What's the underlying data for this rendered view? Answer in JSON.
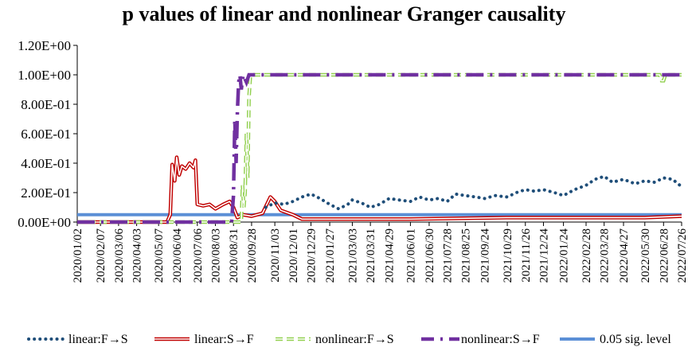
{
  "chart_data": {
    "type": "line",
    "title": "p values of linear and nonlinear Granger causality",
    "xlabel": "",
    "ylabel": "",
    "ylim": [
      0,
      1.2
    ],
    "yticks": [
      "0.00E+00",
      "2.00E-01",
      "4.00E-01",
      "6.00E-01",
      "8.00E-01",
      "1.00E+00",
      "1.20E+00"
    ],
    "x_range": [
      "2020/01/02",
      "2022/07/26"
    ],
    "x": [
      "2020/01/02",
      "2020/02/07",
      "2020/03/06",
      "2020/04/03",
      "2020/05/07",
      "2020/06/04",
      "2020/07/06",
      "2020/08/03",
      "2020/08/31",
      "2020/09/28",
      "2020/11/03",
      "2020/12/01",
      "2020/12/29",
      "2021/01/27",
      "2021/03/03",
      "2021/03/31",
      "2021/04/29",
      "2021/06/01",
      "2021/06/30",
      "2021/07/28",
      "2021/08/25",
      "2021/09/24",
      "2021/10/29",
      "2021/11/26",
      "2021/12/24",
      "2022/01/24",
      "2022/02/28",
      "2022/03/28",
      "2022/04/27",
      "2022/05/30",
      "2022/06/28",
      "2022/07/26"
    ],
    "legend_position": "bottom",
    "grid": false,
    "series": [
      {
        "name": "linear:F→S",
        "color": "#1f4e79",
        "style": "dotted",
        "points": [
          [
            "2020/10/20",
            0.1
          ],
          [
            "2020/11/03",
            0.13
          ],
          [
            "2020/11/17",
            0.12
          ],
          [
            "2020/12/01",
            0.14
          ],
          [
            "2020/12/15",
            0.17
          ],
          [
            "2020/12/29",
            0.19
          ],
          [
            "2021/01/12",
            0.16
          ],
          [
            "2021/01/27",
            0.12
          ],
          [
            "2021/02/10",
            0.09
          ],
          [
            "2021/02/24",
            0.12
          ],
          [
            "2021/03/03",
            0.15
          ],
          [
            "2021/03/17",
            0.13
          ],
          [
            "2021/03/31",
            0.1
          ],
          [
            "2021/04/14",
            0.12
          ],
          [
            "2021/04/29",
            0.16
          ],
          [
            "2021/05/15",
            0.15
          ],
          [
            "2021/06/01",
            0.14
          ],
          [
            "2021/06/15",
            0.17
          ],
          [
            "2021/06/30",
            0.15
          ],
          [
            "2021/07/14",
            0.16
          ],
          [
            "2021/07/28",
            0.14
          ],
          [
            "2021/08/10",
            0.19
          ],
          [
            "2021/08/25",
            0.18
          ],
          [
            "2021/09/10",
            0.17
          ],
          [
            "2021/09/24",
            0.16
          ],
          [
            "2021/10/10",
            0.18
          ],
          [
            "2021/10/29",
            0.17
          ],
          [
            "2021/11/12",
            0.2
          ],
          [
            "2021/11/26",
            0.22
          ],
          [
            "2021/12/10",
            0.21
          ],
          [
            "2021/12/24",
            0.22
          ],
          [
            "2022/01/10",
            0.2
          ],
          [
            "2022/01/24",
            0.18
          ],
          [
            "2022/02/10",
            0.22
          ],
          [
            "2022/02/28",
            0.25
          ],
          [
            "2022/03/14",
            0.29
          ],
          [
            "2022/03/28",
            0.31
          ],
          [
            "2022/04/10",
            0.27
          ],
          [
            "2022/04/27",
            0.29
          ],
          [
            "2022/05/15",
            0.26
          ],
          [
            "2022/05/30",
            0.28
          ],
          [
            "2022/06/14",
            0.27
          ],
          [
            "2022/06/28",
            0.3
          ],
          [
            "2022/07/12",
            0.29
          ],
          [
            "2022/07/26",
            0.24
          ]
        ]
      },
      {
        "name": "linear:S→F",
        "color": "#c00000",
        "style": "double",
        "points": [
          [
            "2020/01/02",
            0.0
          ],
          [
            "2020/05/20",
            0.0
          ],
          [
            "2020/05/25",
            0.05
          ],
          [
            "2020/05/28",
            0.39
          ],
          [
            "2020/06/01",
            0.28
          ],
          [
            "2020/06/04",
            0.44
          ],
          [
            "2020/06/08",
            0.32
          ],
          [
            "2020/06/12",
            0.38
          ],
          [
            "2020/06/18",
            0.36
          ],
          [
            "2020/06/24",
            0.4
          ],
          [
            "2020/06/30",
            0.37
          ],
          [
            "2020/07/03",
            0.42
          ],
          [
            "2020/07/06",
            0.12
          ],
          [
            "2020/07/15",
            0.11
          ],
          [
            "2020/07/25",
            0.12
          ],
          [
            "2020/08/03",
            0.09
          ],
          [
            "2020/08/15",
            0.12
          ],
          [
            "2020/08/25",
            0.14
          ],
          [
            "2020/08/31",
            0.1
          ],
          [
            "2020/09/06",
            0.03
          ],
          [
            "2020/09/15",
            0.05
          ],
          [
            "2020/09/28",
            0.04
          ],
          [
            "2020/10/15",
            0.06
          ],
          [
            "2020/10/27",
            0.17
          ],
          [
            "2020/11/03",
            0.14
          ],
          [
            "2020/11/12",
            0.08
          ],
          [
            "2020/12/01",
            0.05
          ],
          [
            "2020/12/15",
            0.02
          ],
          [
            "2021/01/27",
            0.02
          ],
          [
            "2021/06/01",
            0.02
          ],
          [
            "2021/10/29",
            0.03
          ],
          [
            "2022/02/28",
            0.03
          ],
          [
            "2022/05/30",
            0.03
          ],
          [
            "2022/07/26",
            0.04
          ]
        ]
      },
      {
        "name": "nonlinear:F→S",
        "color": "#92d050",
        "style": "double-dashed",
        "points": [
          [
            "2020/01/02",
            0.0
          ],
          [
            "2020/09/12",
            0.0
          ],
          [
            "2020/09/14",
            0.25
          ],
          [
            "2020/09/16",
            0.1
          ],
          [
            "2020/09/18",
            0.2
          ],
          [
            "2020/09/20",
            0.6
          ],
          [
            "2020/09/22",
            0.3
          ],
          [
            "2020/09/24",
            0.85
          ],
          [
            "2020/09/26",
            0.98
          ],
          [
            "2020/09/28",
            1.0
          ],
          [
            "2020/10/10",
            1.0
          ],
          [
            "2022/06/22",
            1.0
          ],
          [
            "2022/06/25",
            0.96
          ],
          [
            "2022/06/28",
            0.96
          ],
          [
            "2022/07/01",
            1.0
          ],
          [
            "2022/07/26",
            1.0
          ]
        ]
      },
      {
        "name": "nonlinear:S→F",
        "color": "#7030a0",
        "style": "dash-dot",
        "points": [
          [
            "2020/01/02",
            0.0
          ],
          [
            "2020/08/28",
            0.0
          ],
          [
            "2020/08/31",
            0.18
          ],
          [
            "2020/09/02",
            0.7
          ],
          [
            "2020/09/04",
            0.4
          ],
          [
            "2020/09/06",
            0.75
          ],
          [
            "2020/09/08",
            0.95
          ],
          [
            "2020/09/10",
            1.0
          ],
          [
            "2020/09/12",
            0.9
          ],
          [
            "2020/09/15",
            1.0
          ],
          [
            "2020/09/20",
            0.95
          ],
          [
            "2020/09/24",
            1.0
          ],
          [
            "2022/07/26",
            1.0
          ]
        ]
      },
      {
        "name": "0.05 sig. level",
        "color": "#5b8fd6",
        "style": "solid",
        "points": [
          [
            "2020/01/02",
            0.05
          ],
          [
            "2022/07/26",
            0.05
          ]
        ]
      }
    ]
  }
}
